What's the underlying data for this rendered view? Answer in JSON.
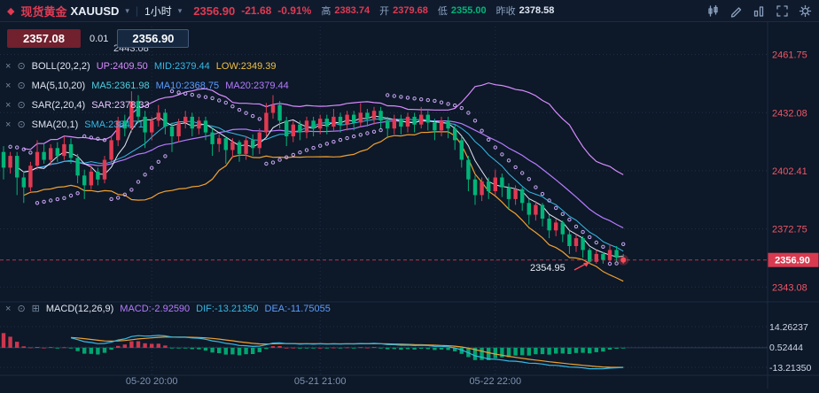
{
  "header": {
    "symbol_cn": "现货黄金",
    "symbol": "XAUUSD",
    "timeframe": "1小时",
    "last": "2356.90",
    "change": "-21.68",
    "change_pct": "-0.91%",
    "high_label": "高",
    "high": "2383.74",
    "open_label": "开",
    "open": "2379.68",
    "low_label": "低",
    "low": "2355.00",
    "prev_close_label": "昨收",
    "prev_close": "2378.58",
    "icons": [
      "chart-style-icon",
      "draw-icon",
      "compare-icon",
      "fullscreen-icon",
      "settings-gear-icon"
    ]
  },
  "quote_panel": {
    "sell": "2357.08",
    "spread": "0.01",
    "buy": "2356.90"
  },
  "icons": {
    "close": "×",
    "eye": "⊙",
    "grid": "⊞",
    "caret": "▾",
    "diamond": "◆"
  },
  "indicators": [
    {
      "id": "boll",
      "name": "BOLL(20,2,2)",
      "values": [
        {
          "t": "UP:2409.50",
          "c": "#d98cff"
        },
        {
          "t": "MID:2379.44",
          "c": "#35b9e6"
        },
        {
          "t": "LOW:2349.39",
          "c": "#f0c040"
        }
      ]
    },
    {
      "id": "ma",
      "name": "MA(5,10,20)",
      "values": [
        {
          "t": "MA5:2361.98",
          "c": "#4dd0e1"
        },
        {
          "t": "MA10:2368.75",
          "c": "#5c9dff"
        },
        {
          "t": "MA20:2379.44",
          "c": "#b57bff"
        }
      ]
    },
    {
      "id": "sar",
      "name": "SAR(2,20,4)",
      "values": [
        {
          "t": "SAR:2378.33",
          "c": "#e8c8ff"
        }
      ]
    },
    {
      "id": "sma",
      "name": "SMA(20,1)",
      "values": [
        {
          "t": "SMA:2384.71",
          "c": "#35b9e6"
        }
      ]
    }
  ],
  "macd_row": {
    "name": "MACD(12,26,9)",
    "values": [
      {
        "t": "MACD:-2.92590",
        "c": "#b57bff"
      },
      {
        "t": "DIF:-13.21350",
        "c": "#35b9e6"
      },
      {
        "t": "DEA:-11.75055",
        "c": "#5c9dff"
      }
    ]
  },
  "axis": {
    "price_labels": [
      "2461.75",
      "2432.08",
      "2402.41",
      "2372.75",
      "2343.08"
    ],
    "last_price": "2356.90",
    "macd_labels": [
      "14.26237",
      "0.52444",
      "-13.21350"
    ],
    "time_labels": [
      {
        "label": "05-20 20:00",
        "i": 22
      },
      {
        "label": "05-21 21:00",
        "i": 47
      },
      {
        "label": "05-22 22:00",
        "i": 73
      }
    ]
  },
  "annotations": {
    "low": "2354.95",
    "high": "2443.08"
  },
  "colors": {
    "up": "#e13a52",
    "down": "#00b578",
    "axis_red": "#ef5667",
    "badge": "#d93a50",
    "cyan": "#35b9e6",
    "purple": "#b57bff",
    "violet": "#d98cff",
    "orange": "#f0a030",
    "blue": "#5c9dff",
    "white_line": "#e3e9f4",
    "sar_dot": "#c7a6f2",
    "grid": "#20304b",
    "text_gray": "#7f93b2",
    "sep": "#1c2c44",
    "macd_text": "#cfd8ea"
  },
  "chart_data": {
    "type": "candlestick+macd",
    "title": "XAUUSD 1小时",
    "candles": [
      [
        2412,
        2415,
        2398,
        2404
      ],
      [
        2404,
        2412,
        2401,
        2410
      ],
      [
        2410,
        2412,
        2390,
        2399
      ],
      [
        2399,
        2402,
        2386,
        2394
      ],
      [
        2394,
        2407,
        2392,
        2405
      ],
      [
        2405,
        2418,
        2403,
        2412
      ],
      [
        2412,
        2416,
        2406,
        2408
      ],
      [
        2408,
        2416,
        2405,
        2414
      ],
      [
        2414,
        2417,
        2407,
        2410
      ],
      [
        2410,
        2420,
        2408,
        2416
      ],
      [
        2416,
        2419,
        2406,
        2409
      ],
      [
        2409,
        2411,
        2396,
        2400
      ],
      [
        2400,
        2403,
        2388,
        2395
      ],
      [
        2395,
        2405,
        2393,
        2402
      ],
      [
        2402,
        2404,
        2395,
        2398
      ],
      [
        2398,
        2410,
        2396,
        2408
      ],
      [
        2408,
        2420,
        2406,
        2418
      ],
      [
        2418,
        2430,
        2415,
        2428
      ],
      [
        2428,
        2431,
        2420,
        2424
      ],
      [
        2424,
        2443,
        2422,
        2438
      ],
      [
        2438,
        2441,
        2427,
        2430
      ],
      [
        2430,
        2433,
        2414,
        2422
      ],
      [
        2422,
        2430,
        2418,
        2428
      ],
      [
        2428,
        2436,
        2425,
        2432
      ],
      [
        2432,
        2434,
        2421,
        2425
      ],
      [
        2425,
        2427,
        2412,
        2420
      ],
      [
        2420,
        2429,
        2417,
        2427
      ],
      [
        2427,
        2433,
        2424,
        2430
      ],
      [
        2430,
        2432,
        2420,
        2424
      ],
      [
        2424,
        2430,
        2421,
        2428
      ],
      [
        2428,
        2430,
        2418,
        2422
      ],
      [
        2422,
        2424,
        2410,
        2416
      ],
      [
        2416,
        2421,
        2412,
        2419
      ],
      [
        2419,
        2420,
        2406,
        2413
      ],
      [
        2413,
        2419,
        2409,
        2417
      ],
      [
        2417,
        2418,
        2407,
        2411
      ],
      [
        2411,
        2420,
        2408,
        2418
      ],
      [
        2418,
        2421,
        2410,
        2414
      ],
      [
        2414,
        2424,
        2411,
        2422
      ],
      [
        2422,
        2437,
        2420,
        2432
      ],
      [
        2432,
        2441,
        2429,
        2436
      ],
      [
        2436,
        2438,
        2424,
        2428
      ],
      [
        2428,
        2430,
        2415,
        2420
      ],
      [
        2420,
        2428,
        2417,
        2426
      ],
      [
        2426,
        2428,
        2418,
        2422
      ],
      [
        2422,
        2430,
        2419,
        2428
      ],
      [
        2428,
        2430,
        2420,
        2424
      ],
      [
        2424,
        2431,
        2421,
        2429
      ],
      [
        2429,
        2431,
        2421,
        2425
      ],
      [
        2425,
        2434,
        2423,
        2430
      ],
      [
        2430,
        2432,
        2422,
        2426
      ],
      [
        2426,
        2433,
        2423,
        2431
      ],
      [
        2431,
        2433,
        2423,
        2427
      ],
      [
        2427,
        2437,
        2425,
        2432
      ],
      [
        2432,
        2434,
        2425,
        2429
      ],
      [
        2429,
        2435,
        2426,
        2433
      ],
      [
        2433,
        2435,
        2424,
        2428
      ],
      [
        2428,
        2430,
        2419,
        2424
      ],
      [
        2424,
        2431,
        2421,
        2429
      ],
      [
        2429,
        2431,
        2421,
        2425
      ],
      [
        2425,
        2432,
        2422,
        2430
      ],
      [
        2430,
        2432,
        2422,
        2426
      ],
      [
        2426,
        2435,
        2424,
        2431
      ],
      [
        2431,
        2433,
        2423,
        2427
      ],
      [
        2427,
        2429,
        2418,
        2423
      ],
      [
        2423,
        2430,
        2420,
        2428
      ],
      [
        2428,
        2430,
        2419,
        2424
      ],
      [
        2424,
        2426,
        2413,
        2418
      ],
      [
        2418,
        2420,
        2404,
        2408
      ],
      [
        2408,
        2410,
        2392,
        2398
      ],
      [
        2398,
        2400,
        2385,
        2390
      ],
      [
        2390,
        2399,
        2387,
        2397
      ],
      [
        2397,
        2399,
        2388,
        2392
      ],
      [
        2392,
        2403,
        2390,
        2399
      ],
      [
        2399,
        2401,
        2389,
        2394
      ],
      [
        2394,
        2396,
        2383,
        2388
      ],
      [
        2388,
        2395,
        2385,
        2393
      ],
      [
        2393,
        2394,
        2382,
        2386
      ],
      [
        2386,
        2388,
        2375,
        2380
      ],
      [
        2380,
        2387,
        2377,
        2385
      ],
      [
        2385,
        2386,
        2374,
        2378
      ],
      [
        2378,
        2380,
        2368,
        2372
      ],
      [
        2372,
        2378,
        2369,
        2376
      ],
      [
        2376,
        2377,
        2366,
        2370
      ],
      [
        2370,
        2372,
        2360,
        2364
      ],
      [
        2364,
        2370,
        2361,
        2368
      ],
      [
        2368,
        2369,
        2358,
        2362
      ],
      [
        2362,
        2363,
        2354.95,
        2356
      ],
      [
        2356,
        2362,
        2355,
        2360
      ],
      [
        2360,
        2361,
        2355,
        2357
      ],
      [
        2357,
        2365,
        2356,
        2362
      ],
      [
        2362,
        2364,
        2356,
        2358
      ],
      [
        2358,
        2360,
        2355,
        2356.9
      ]
    ]
  }
}
